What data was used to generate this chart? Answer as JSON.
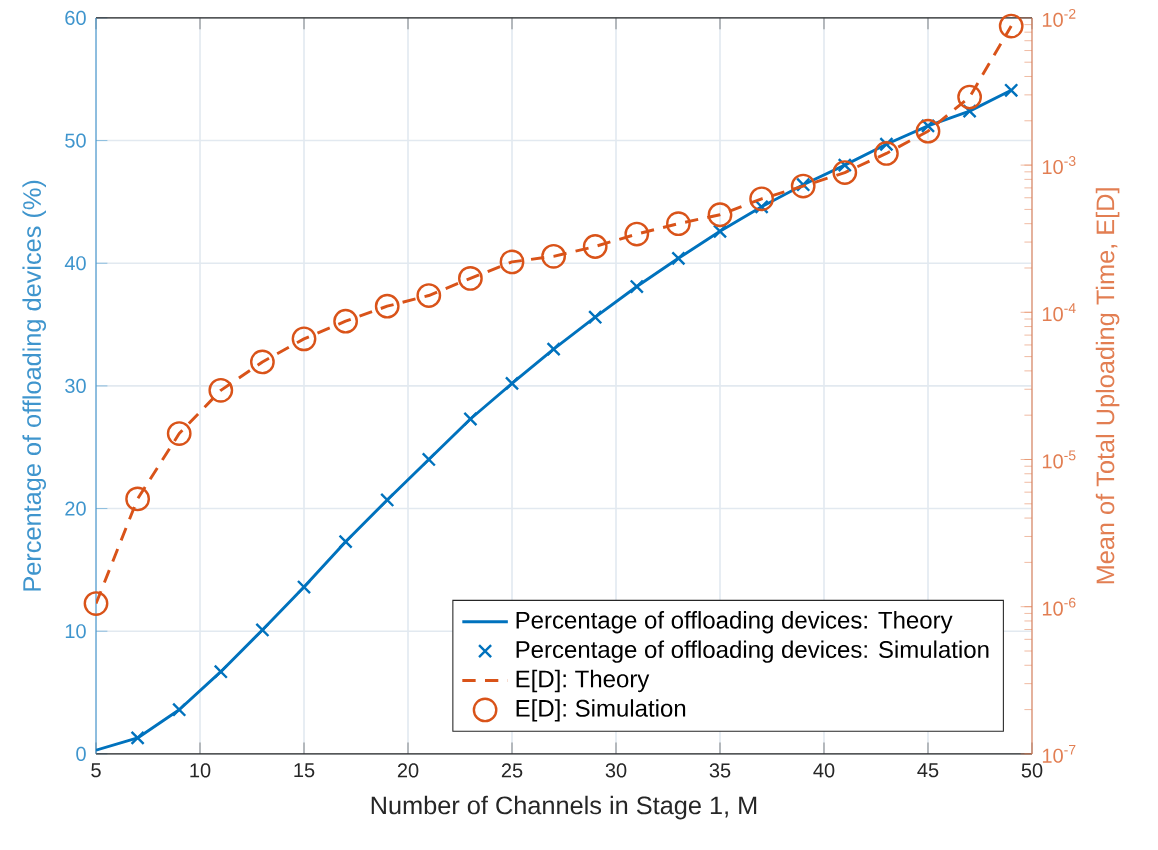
{
  "chart_data": {
    "type": "line",
    "xlabel": "Number of Channels in Stage 1, M",
    "ylabel": "Percentage of offloading devices (%)",
    "y2label": "Mean of Total Uploading Time, E[D]",
    "xlim": [
      5,
      50
    ],
    "xticks": [
      5,
      10,
      15,
      20,
      25,
      30,
      35,
      40,
      45,
      50
    ],
    "ylim": [
      0,
      60
    ],
    "yticks": [
      0,
      10,
      20,
      30,
      40,
      50,
      60
    ],
    "y2lim": [
      1e-07,
      0.01
    ],
    "log": "y2",
    "y2ticks": [
      {
        "value": 1e-07,
        "label": "10$^{-7}$"
      },
      {
        "value": 1e-06,
        "label": "10$^{-6}$"
      },
      {
        "value": 1e-05,
        "label": "10$^{-5}$"
      },
      {
        "value": 0.0001,
        "label": "10$^{-4}$"
      },
      {
        "value": 0.001,
        "label": "10$^{-3}$"
      },
      {
        "value": 0.01,
        "label": "10$^{-2}$"
      }
    ],
    "grid": true,
    "legend": "bottom right",
    "series": [
      {
        "name": "Percentage of offloading devices: Theory",
        "marker": "none",
        "line_style": "solid",
        "color": "#0072bd",
        "x": [
          5,
          7,
          9,
          11,
          13,
          15,
          17,
          19,
          21,
          23,
          25,
          27,
          29,
          31,
          33,
          35,
          37,
          39,
          41,
          43,
          45,
          47,
          49
        ],
        "values": [
          0.3,
          1.3,
          3.6,
          6.7,
          10.1,
          13.6,
          17.3,
          20.7,
          24.0,
          27.3,
          30.2,
          33.0,
          35.6,
          38.1,
          40.4,
          42.6,
          44.6,
          46.4,
          48.0,
          49.7,
          51.2,
          52.4,
          54.1
        ]
      },
      {
        "name": "Percentage of offloading devices: Simulation",
        "type": "scatter",
        "marker": "cross",
        "color": "#0072bd",
        "x": [
          7,
          9,
          11,
          13,
          15,
          17,
          19,
          21,
          23,
          25,
          27,
          29,
          31,
          33,
          35,
          37,
          39,
          41,
          43,
          45,
          47,
          49
        ],
        "values": [
          1.3,
          3.6,
          6.7,
          10.1,
          13.6,
          17.3,
          20.7,
          24.0,
          27.3,
          30.2,
          33.0,
          35.6,
          38.1,
          40.4,
          42.6,
          44.6,
          46.4,
          48.0,
          49.7,
          51.2,
          52.4,
          54.1
        ]
      },
      {
        "name": "E[D]: Theory",
        "marker": "none",
        "line_style": "dashed",
        "axis": "y2",
        "color": "#d95319",
        "x": [
          5,
          7,
          9,
          11,
          13,
          15,
          17,
          19,
          21,
          23,
          25,
          27,
          29,
          31,
          33,
          35,
          37,
          39,
          41,
          43,
          45,
          47,
          49
        ],
        "values": [
          1.05e-06,
          5.4e-06,
          1.5e-05,
          2.95e-05,
          4.6e-05,
          6.6e-05,
          8.7e-05,
          0.00011,
          0.00013,
          0.00017,
          0.00022,
          0.00024,
          0.00028,
          0.00034,
          0.0004,
          0.00046,
          0.00059,
          0.00072,
          0.00089,
          0.0012,
          0.0017,
          0.0029,
          0.0088
        ]
      },
      {
        "name": "E[D]: Simulation",
        "type": "scatter",
        "marker": "circle",
        "axis": "y2",
        "color": "#d95319",
        "x": [
          5,
          7,
          9,
          11,
          13,
          15,
          17,
          19,
          21,
          23,
          25,
          27,
          29,
          31,
          33,
          35,
          37,
          39,
          41,
          43,
          45,
          47,
          49
        ],
        "values": [
          1.05e-06,
          5.4e-06,
          1.5e-05,
          2.95e-05,
          4.6e-05,
          6.6e-05,
          8.7e-05,
          0.00011,
          0.00013,
          0.00017,
          0.00022,
          0.00024,
          0.00028,
          0.00034,
          0.0004,
          0.00046,
          0.00059,
          0.00072,
          0.00089,
          0.0012,
          0.0017,
          0.0029,
          0.0088
        ]
      }
    ]
  }
}
